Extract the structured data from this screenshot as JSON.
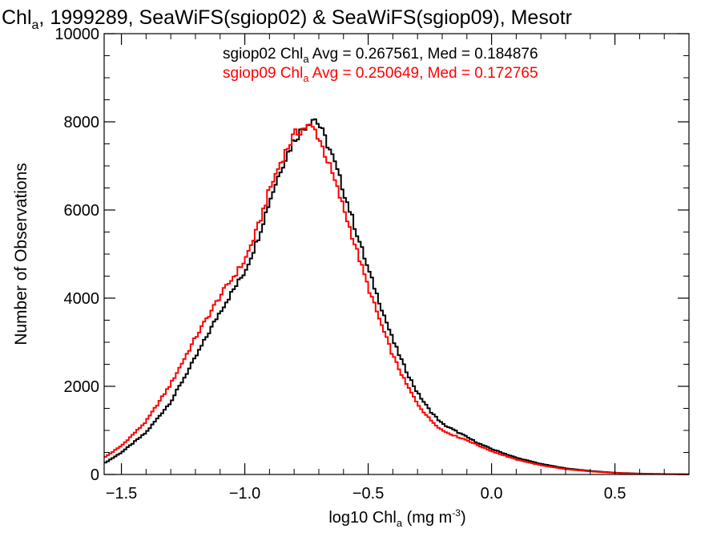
{
  "chart_data": {
    "type": "line",
    "title": {
      "prefix": "Chl",
      "subscript": "a",
      "suffix": ", 1999289, SeaWiFS(sgiop02) & SeaWiFS(sgiop09), Mesotr"
    },
    "xlabel": {
      "prefix": "log10 Chl",
      "subscript": "a",
      "middle": " (mg m",
      "superscript": "-3",
      "suffix": ")"
    },
    "ylabel": "Number of Observations",
    "xlim": [
      -1.57,
      0.8
    ],
    "ylim": [
      0,
      10000
    ],
    "x_ticks": [
      {
        "value": -1.5,
        "label": "−1.5"
      },
      {
        "value": -1.0,
        "label": "−1.0"
      },
      {
        "value": -0.5,
        "label": "−0.5"
      },
      {
        "value": 0.0,
        "label": "0.0"
      },
      {
        "value": 0.5,
        "label": "0.5"
      }
    ],
    "y_ticks": [
      {
        "value": 0,
        "label": "0"
      },
      {
        "value": 2000,
        "label": "2000"
      },
      {
        "value": 4000,
        "label": "4000"
      },
      {
        "value": 6000,
        "label": "6000"
      },
      {
        "value": 8000,
        "label": "8000"
      },
      {
        "value": 10000,
        "label": "10000"
      }
    ],
    "grid": false,
    "legend_position": "top",
    "series": [
      {
        "legend_prefix": "sgiop02 Chl",
        "legend_subscript": "a",
        "legend_suffix": " Avg = 0.267561, Med = 0.184876",
        "color": "#000000",
        "x": [
          -1.57,
          -1.5,
          -1.4,
          -1.3,
          -1.2,
          -1.1,
          -1.0,
          -0.95,
          -0.9,
          -0.85,
          -0.8,
          -0.75,
          -0.72,
          -0.7,
          -0.65,
          -0.6,
          -0.55,
          -0.5,
          -0.45,
          -0.4,
          -0.35,
          -0.3,
          -0.25,
          -0.2,
          -0.15,
          -0.1,
          -0.05,
          0.0,
          0.1,
          0.2,
          0.3,
          0.4,
          0.5,
          0.6,
          0.7,
          0.8
        ],
        "y": [
          250,
          500,
          950,
          1650,
          2650,
          3700,
          4600,
          5300,
          6200,
          7000,
          7600,
          7950,
          8100,
          7950,
          7300,
          6450,
          5550,
          4650,
          3850,
          3050,
          2400,
          1850,
          1450,
          1150,
          1000,
          850,
          700,
          580,
          380,
          240,
          140,
          80,
          40,
          20,
          10,
          5
        ]
      },
      {
        "legend_prefix": "sgiop09 Chl",
        "legend_subscript": "a",
        "legend_suffix": " Avg = 0.250649, Med = 0.172765",
        "color": "#ff0000",
        "x": [
          -1.57,
          -1.5,
          -1.4,
          -1.3,
          -1.2,
          -1.1,
          -1.0,
          -0.95,
          -0.9,
          -0.85,
          -0.8,
          -0.75,
          -0.72,
          -0.7,
          -0.65,
          -0.6,
          -0.55,
          -0.5,
          -0.45,
          -0.4,
          -0.35,
          -0.3,
          -0.25,
          -0.2,
          -0.15,
          -0.1,
          -0.05,
          0.0,
          0.1,
          0.2,
          0.3,
          0.4,
          0.5,
          0.6,
          0.7,
          0.8
        ],
        "y": [
          380,
          650,
          1200,
          2050,
          3100,
          4050,
          4850,
          5550,
          6450,
          7150,
          7700,
          7900,
          7850,
          7650,
          6900,
          6050,
          5150,
          4250,
          3450,
          2700,
          2100,
          1600,
          1250,
          1000,
          880,
          780,
          650,
          530,
          340,
          210,
          120,
          70,
          35,
          15,
          8,
          4
        ]
      }
    ]
  }
}
